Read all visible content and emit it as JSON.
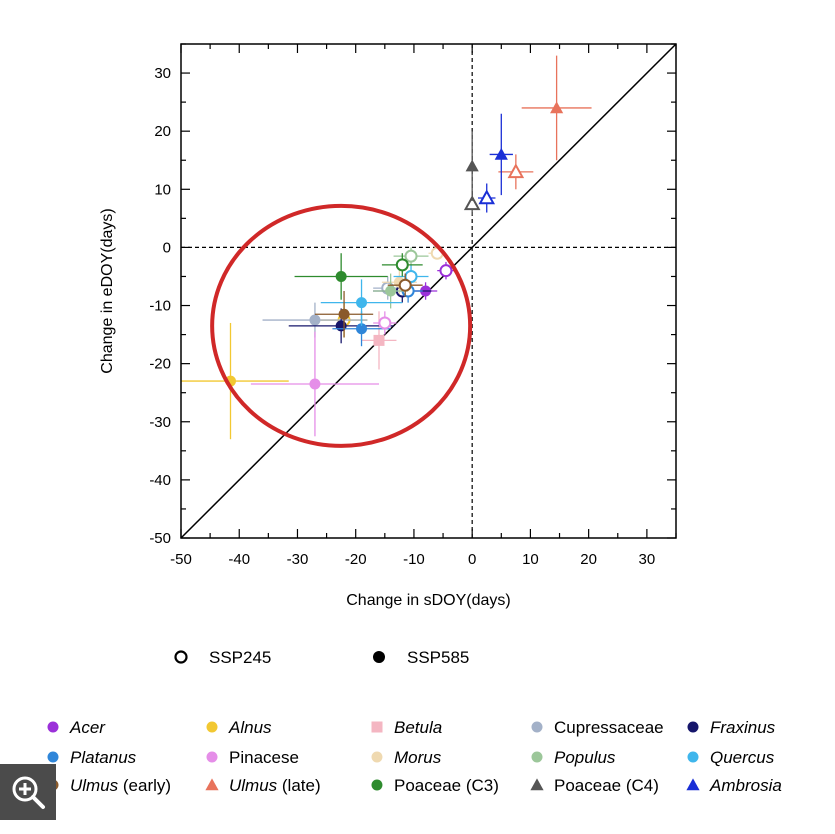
{
  "chart_data": {
    "type": "scatter",
    "title": "",
    "xlabel": "Change in sDOY(days)",
    "ylabel": "Change in eDOY(days)",
    "xlim": [
      -50,
      35
    ],
    "ylim": [
      -50,
      35
    ],
    "xticks": [
      -50,
      -40,
      -30,
      -20,
      -10,
      0,
      10,
      20,
      30
    ],
    "yticks": [
      -50,
      -40,
      -30,
      -20,
      -10,
      0,
      10,
      20,
      30
    ],
    "reference_lines": [
      "y = x",
      "x = 0",
      "y = 0"
    ],
    "annotation": "red circle highlighting tree species cluster",
    "scenario_legend": [
      {
        "label": "SSP245",
        "style": "open"
      },
      {
        "label": "SSP585",
        "style": "filled"
      }
    ],
    "taxa": [
      {
        "name": "Acer",
        "italic": true,
        "suffix": "",
        "color": "#9b30d9",
        "marker": "circle"
      },
      {
        "name": "Alnus",
        "italic": true,
        "suffix": "",
        "color": "#f2c832",
        "marker": "circle"
      },
      {
        "name": "Betula",
        "italic": true,
        "suffix": "",
        "color": "#f4b6c2",
        "marker": "square"
      },
      {
        "name": "Cupressaceae",
        "italic": false,
        "suffix": "",
        "color": "#a3b1c8",
        "marker": "circle"
      },
      {
        "name": "Fraxinus",
        "italic": true,
        "suffix": "",
        "color": "#16166b",
        "marker": "circle"
      },
      {
        "name": "Platanus",
        "italic": true,
        "suffix": "",
        "color": "#2f86d9",
        "marker": "circle"
      },
      {
        "name": "Pinacese",
        "italic": false,
        "suffix": "",
        "color": "#e58ee8",
        "marker": "circle"
      },
      {
        "name": "Morus",
        "italic": true,
        "suffix": "",
        "color": "#efd9b0",
        "marker": "circle"
      },
      {
        "name": "Populus",
        "italic": true,
        "suffix": "",
        "color": "#9cc79a",
        "marker": "circle"
      },
      {
        "name": "Quercus",
        "italic": true,
        "suffix": "",
        "color": "#3fb6ec",
        "marker": "circle"
      },
      {
        "name": "Ulmus",
        "italic": true,
        "suffix": "(early)",
        "color": "#8a5a2b",
        "marker": "circle"
      },
      {
        "name": "Ulmus",
        "italic": true,
        "suffix": "(late)",
        "color": "#e8735c",
        "marker": "triangle"
      },
      {
        "name": "Poaceae (C3)",
        "italic": false,
        "suffix": "",
        "color": "#2e8b2e",
        "marker": "circle"
      },
      {
        "name": "Poaceae (C4)",
        "italic": false,
        "suffix": "",
        "color": "#555555",
        "marker": "triangle"
      },
      {
        "name": "Ambrosia",
        "italic": true,
        "suffix": "",
        "color": "#1a2fd6",
        "marker": "triangle"
      }
    ],
    "points": [
      {
        "taxon": 0,
        "scenario": "SSP245",
        "x": -4.5,
        "y": -4,
        "xerr": 1.5,
        "yerr": 1.5
      },
      {
        "taxon": 0,
        "scenario": "SSP585",
        "x": -8,
        "y": -7.5,
        "xerr": 2,
        "yerr": 1.5
      },
      {
        "taxon": 1,
        "scenario": "SSP585",
        "x": -41.5,
        "y": -23,
        "xerr": 10,
        "yerr": 10
      },
      {
        "taxon": 1,
        "scenario": "SSP245",
        "x": -22,
        "y": -12.5,
        "xerr": 4,
        "yerr": 3
      },
      {
        "taxon": 2,
        "scenario": "SSP585",
        "x": -16,
        "y": -16,
        "xerr": 3,
        "yerr": 5
      },
      {
        "taxon": 3,
        "scenario": "SSP245",
        "x": -14.5,
        "y": -7,
        "xerr": 2.5,
        "yerr": 2
      },
      {
        "taxon": 3,
        "scenario": "SSP585",
        "x": -27,
        "y": -12.5,
        "xerr": 9,
        "yerr": 3
      },
      {
        "taxon": 4,
        "scenario": "SSP245",
        "x": -12,
        "y": -7.5,
        "xerr": 5,
        "yerr": 2
      },
      {
        "taxon": 4,
        "scenario": "SSP585",
        "x": -22.5,
        "y": -13.5,
        "xerr": 9,
        "yerr": 3
      },
      {
        "taxon": 5,
        "scenario": "SSP245",
        "x": -11,
        "y": -7.5,
        "xerr": 2.5,
        "yerr": 2
      },
      {
        "taxon": 5,
        "scenario": "SSP585",
        "x": -19,
        "y": -14,
        "xerr": 5,
        "yerr": 3
      },
      {
        "taxon": 6,
        "scenario": "SSP245",
        "x": -15,
        "y": -13,
        "xerr": 2,
        "yerr": 2
      },
      {
        "taxon": 6,
        "scenario": "SSP585",
        "x": -27,
        "y": -23.5,
        "xerr": 11,
        "yerr": 9
      },
      {
        "taxon": 7,
        "scenario": "SSP245",
        "x": -6,
        "y": -1,
        "xerr": 1.5,
        "yerr": 1
      },
      {
        "taxon": 7,
        "scenario": "SSP585",
        "x": -12.5,
        "y": -6,
        "xerr": 3,
        "yerr": 2
      },
      {
        "taxon": 8,
        "scenario": "SSP245",
        "x": -10.5,
        "y": -1.5,
        "xerr": 3,
        "yerr": 1.5
      },
      {
        "taxon": 8,
        "scenario": "SSP585",
        "x": -14,
        "y": -7.5,
        "xerr": 3,
        "yerr": 3
      },
      {
        "taxon": 9,
        "scenario": "SSP245",
        "x": -10.5,
        "y": -5,
        "xerr": 3,
        "yerr": 2
      },
      {
        "taxon": 9,
        "scenario": "SSP585",
        "x": -19,
        "y": -9.5,
        "xerr": 7,
        "yerr": 4
      },
      {
        "taxon": 10,
        "scenario": "SSP245",
        "x": -11.5,
        "y": -6.5,
        "xerr": 3,
        "yerr": 2
      },
      {
        "taxon": 10,
        "scenario": "SSP585",
        "x": -22,
        "y": -11.5,
        "xerr": 5,
        "yerr": 4
      },
      {
        "taxon": 11,
        "scenario": "SSP245",
        "x": 7.5,
        "y": 13,
        "xerr": 3,
        "yerr": 3
      },
      {
        "taxon": 11,
        "scenario": "SSP585",
        "x": 14.5,
        "y": 24,
        "xerr": 6,
        "yerr": 9
      },
      {
        "taxon": 12,
        "scenario": "SSP245",
        "x": -12,
        "y": -3,
        "xerr": 3.5,
        "yerr": 2
      },
      {
        "taxon": 12,
        "scenario": "SSP585",
        "x": -22.5,
        "y": -5,
        "xerr": 8,
        "yerr": 4
      },
      {
        "taxon": 13,
        "scenario": "SSP245",
        "x": 0,
        "y": 7.5,
        "xerr": 0.5,
        "yerr": 2
      },
      {
        "taxon": 13,
        "scenario": "SSP585",
        "x": 0,
        "y": 14,
        "xerr": 0.5,
        "yerr": 6
      },
      {
        "taxon": 14,
        "scenario": "SSP245",
        "x": 2.5,
        "y": 8.5,
        "xerr": 1.5,
        "yerr": 2.5
      },
      {
        "taxon": 14,
        "scenario": "SSP585",
        "x": 5,
        "y": 16,
        "xerr": 2,
        "yerr": 7
      }
    ]
  },
  "ui": {
    "zoom_icon": "zoom-in-icon"
  }
}
